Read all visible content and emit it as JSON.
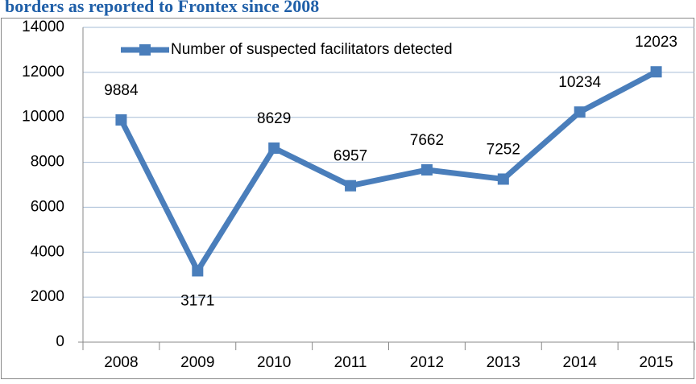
{
  "chart_data": {
    "type": "line",
    "title": "borders as reported to Frontex since 2008",
    "categories": [
      "2008",
      "2009",
      "2010",
      "2011",
      "2012",
      "2013",
      "2014",
      "2015"
    ],
    "series": [
      {
        "name": "Number of suspected facilitators detected",
        "color": "#4a7ebb",
        "values": [
          9884,
          3171,
          8629,
          6957,
          7662,
          7252,
          10234,
          12023
        ]
      }
    ],
    "ylim": [
      0,
      14000
    ],
    "yticks": [
      0,
      2000,
      4000,
      6000,
      8000,
      10000,
      12000,
      14000
    ],
    "grid": true,
    "legend": "top-left"
  }
}
